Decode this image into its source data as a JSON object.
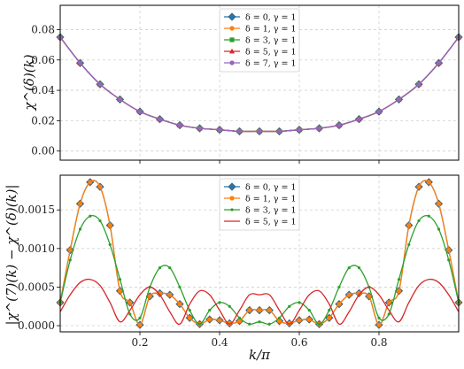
{
  "chart_data": [
    {
      "panel": "top",
      "type": "line",
      "ylabel": "χ^(δ)(k)",
      "xlim": [
        0.0,
        1.0
      ],
      "ylim": [
        -0.006,
        0.096
      ],
      "yticks": [
        0.0,
        0.02,
        0.04,
        0.06,
        0.08
      ],
      "ytick_labels": [
        "0.00",
        "0.02",
        "0.04",
        "0.06",
        "0.08"
      ],
      "xticks": [
        0.2,
        0.4,
        0.6,
        0.8
      ],
      "grid": true,
      "legend_position": "top-center",
      "curve_description": "U-shaped curve, about 0.075 at k/π=0, minimum about 0.013 at k/π=0.5, about 0.075 at k/π=1; all five series overlap",
      "x": [
        0.0,
        0.05,
        0.1,
        0.15,
        0.2,
        0.25,
        0.3,
        0.35,
        0.4,
        0.45,
        0.5,
        0.55,
        0.6,
        0.65,
        0.7,
        0.75,
        0.8,
        0.85,
        0.9,
        0.95,
        1.0
      ],
      "series": [
        {
          "name": "δ = 0, γ = 1",
          "color": "#1f77b4",
          "marker": "diamond",
          "values": [
            0.075,
            0.058,
            0.044,
            0.034,
            0.026,
            0.021,
            0.017,
            0.015,
            0.014,
            0.013,
            0.013,
            0.013,
            0.014,
            0.015,
            0.017,
            0.021,
            0.026,
            0.034,
            0.044,
            0.058,
            0.075
          ]
        },
        {
          "name": "δ = 1, γ = 1",
          "color": "#ff7f0e",
          "marker": "circle",
          "values": [
            0.075,
            0.058,
            0.044,
            0.034,
            0.026,
            0.021,
            0.017,
            0.015,
            0.014,
            0.013,
            0.013,
            0.013,
            0.014,
            0.015,
            0.017,
            0.021,
            0.026,
            0.034,
            0.044,
            0.058,
            0.075
          ]
        },
        {
          "name": "δ = 3, γ = 1",
          "color": "#2ca02c",
          "marker": "square",
          "values": [
            0.075,
            0.058,
            0.044,
            0.034,
            0.026,
            0.021,
            0.017,
            0.015,
            0.014,
            0.013,
            0.013,
            0.013,
            0.014,
            0.015,
            0.017,
            0.021,
            0.026,
            0.034,
            0.044,
            0.058,
            0.075
          ]
        },
        {
          "name": "δ = 5, γ = 1",
          "color": "#d62728",
          "marker": "triangle",
          "values": [
            0.075,
            0.058,
            0.044,
            0.034,
            0.026,
            0.021,
            0.017,
            0.015,
            0.014,
            0.013,
            0.013,
            0.013,
            0.014,
            0.015,
            0.017,
            0.021,
            0.026,
            0.034,
            0.044,
            0.058,
            0.075
          ]
        },
        {
          "name": "δ = 7, γ = 1",
          "color": "#9467bd",
          "marker": "circle",
          "values": [
            0.075,
            0.058,
            0.044,
            0.034,
            0.026,
            0.021,
            0.017,
            0.015,
            0.014,
            0.013,
            0.013,
            0.013,
            0.014,
            0.015,
            0.017,
            0.021,
            0.026,
            0.034,
            0.044,
            0.058,
            0.075
          ]
        }
      ]
    },
    {
      "panel": "bottom",
      "type": "line",
      "ylabel": "|χ^(7)(k) − χ^(δ)(k)|",
      "xlabel": "k/π",
      "xlim": [
        0.0,
        1.0
      ],
      "ylim": [
        -8e-05,
        0.00195
      ],
      "yticks": [
        0.0,
        0.0005,
        0.001,
        0.0015
      ],
      "ytick_labels": [
        "0.0000",
        "0.0005",
        "0.0010",
        "0.0015"
      ],
      "xticks": [
        0.2,
        0.4,
        0.6,
        0.8
      ],
      "xtick_labels": [
        "0.2",
        "0.4",
        "0.6",
        "0.8"
      ],
      "grid": true,
      "legend_position": "top-center",
      "x": [
        0.0,
        0.025,
        0.05,
        0.075,
        0.1,
        0.125,
        0.15,
        0.175,
        0.2,
        0.225,
        0.25,
        0.275,
        0.3,
        0.325,
        0.35,
        0.375,
        0.4,
        0.425,
        0.45,
        0.475,
        0.5,
        0.525,
        0.55,
        0.575,
        0.6,
        0.625,
        0.65,
        0.675,
        0.7,
        0.725,
        0.75,
        0.775,
        0.8,
        0.825,
        0.85,
        0.875,
        0.9,
        0.925,
        0.95,
        0.975,
        1.0
      ],
      "series": [
        {
          "name": "δ = 0, γ = 1",
          "color": "#1f77b4",
          "marker": "diamond",
          "values": [
            0.0003,
            0.00098,
            0.00158,
            0.00186,
            0.0018,
            0.0013,
            0.00045,
            0.0003,
            1e-05,
            0.00038,
            0.00042,
            0.0004,
            0.00028,
            0.0001,
            2e-05,
            8e-05,
            7e-05,
            3e-05,
            6e-05,
            0.0002,
            0.0002,
            0.0002,
            6e-05,
            3e-05,
            7e-05,
            8e-05,
            2e-05,
            0.0001,
            0.00028,
            0.0004,
            0.00042,
            0.00038,
            1e-05,
            0.0003,
            0.00045,
            0.0013,
            0.0018,
            0.00186,
            0.00158,
            0.00098,
            0.0003
          ]
        },
        {
          "name": "δ = 1, γ = 1",
          "color": "#ff7f0e",
          "marker": "circle",
          "values": [
            0.0003,
            0.00098,
            0.00158,
            0.00186,
            0.0018,
            0.0013,
            0.00045,
            0.0003,
            1e-05,
            0.00038,
            0.00042,
            0.0004,
            0.00028,
            0.0001,
            2e-05,
            8e-05,
            7e-05,
            3e-05,
            6e-05,
            0.0002,
            0.0002,
            0.0002,
            6e-05,
            3e-05,
            7e-05,
            8e-05,
            2e-05,
            0.0001,
            0.00028,
            0.0004,
            0.00042,
            0.00038,
            1e-05,
            0.0003,
            0.00045,
            0.0013,
            0.0018,
            0.00186,
            0.00158,
            0.00098,
            0.0003
          ]
        },
        {
          "name": "δ = 3, γ = 1",
          "color": "#2ca02c",
          "marker": "dot",
          "values": [
            0.0003,
            0.00085,
            0.00125,
            0.00142,
            0.00136,
            0.00105,
            0.0006,
            0.00015,
            0.0001,
            0.0005,
            0.00075,
            0.00075,
            0.0005,
            0.0002,
            2e-05,
            0.0002,
            0.0003,
            0.00025,
            0.0001,
            2e-05,
            5e-05,
            2e-05,
            0.0001,
            0.00025,
            0.0003,
            0.0002,
            2e-05,
            0.0002,
            0.0005,
            0.00075,
            0.00075,
            0.0005,
            0.0001,
            0.00015,
            0.0006,
            0.00105,
            0.00136,
            0.00142,
            0.00125,
            0.00085,
            0.0003
          ]
        },
        {
          "name": "δ = 5, γ = 1",
          "color": "#d62728",
          "marker": "none",
          "values": [
            0.00018,
            0.0004,
            0.00056,
            0.0006,
            0.00052,
            0.0003,
            5e-05,
            0.0002,
            0.0004,
            0.0005,
            0.0004,
            0.00018,
            2e-05,
            0.00028,
            0.00045,
            0.0004,
            0.0002,
            2e-05,
            0.0002,
            0.0004,
            0.0004,
            0.0004,
            0.0002,
            2e-05,
            0.0002,
            0.0004,
            0.00045,
            0.00028,
            2e-05,
            0.00018,
            0.0004,
            0.0005,
            0.0004,
            0.0002,
            5e-05,
            0.0003,
            0.00052,
            0.0006,
            0.00056,
            0.0004,
            0.00018
          ]
        }
      ]
    }
  ]
}
